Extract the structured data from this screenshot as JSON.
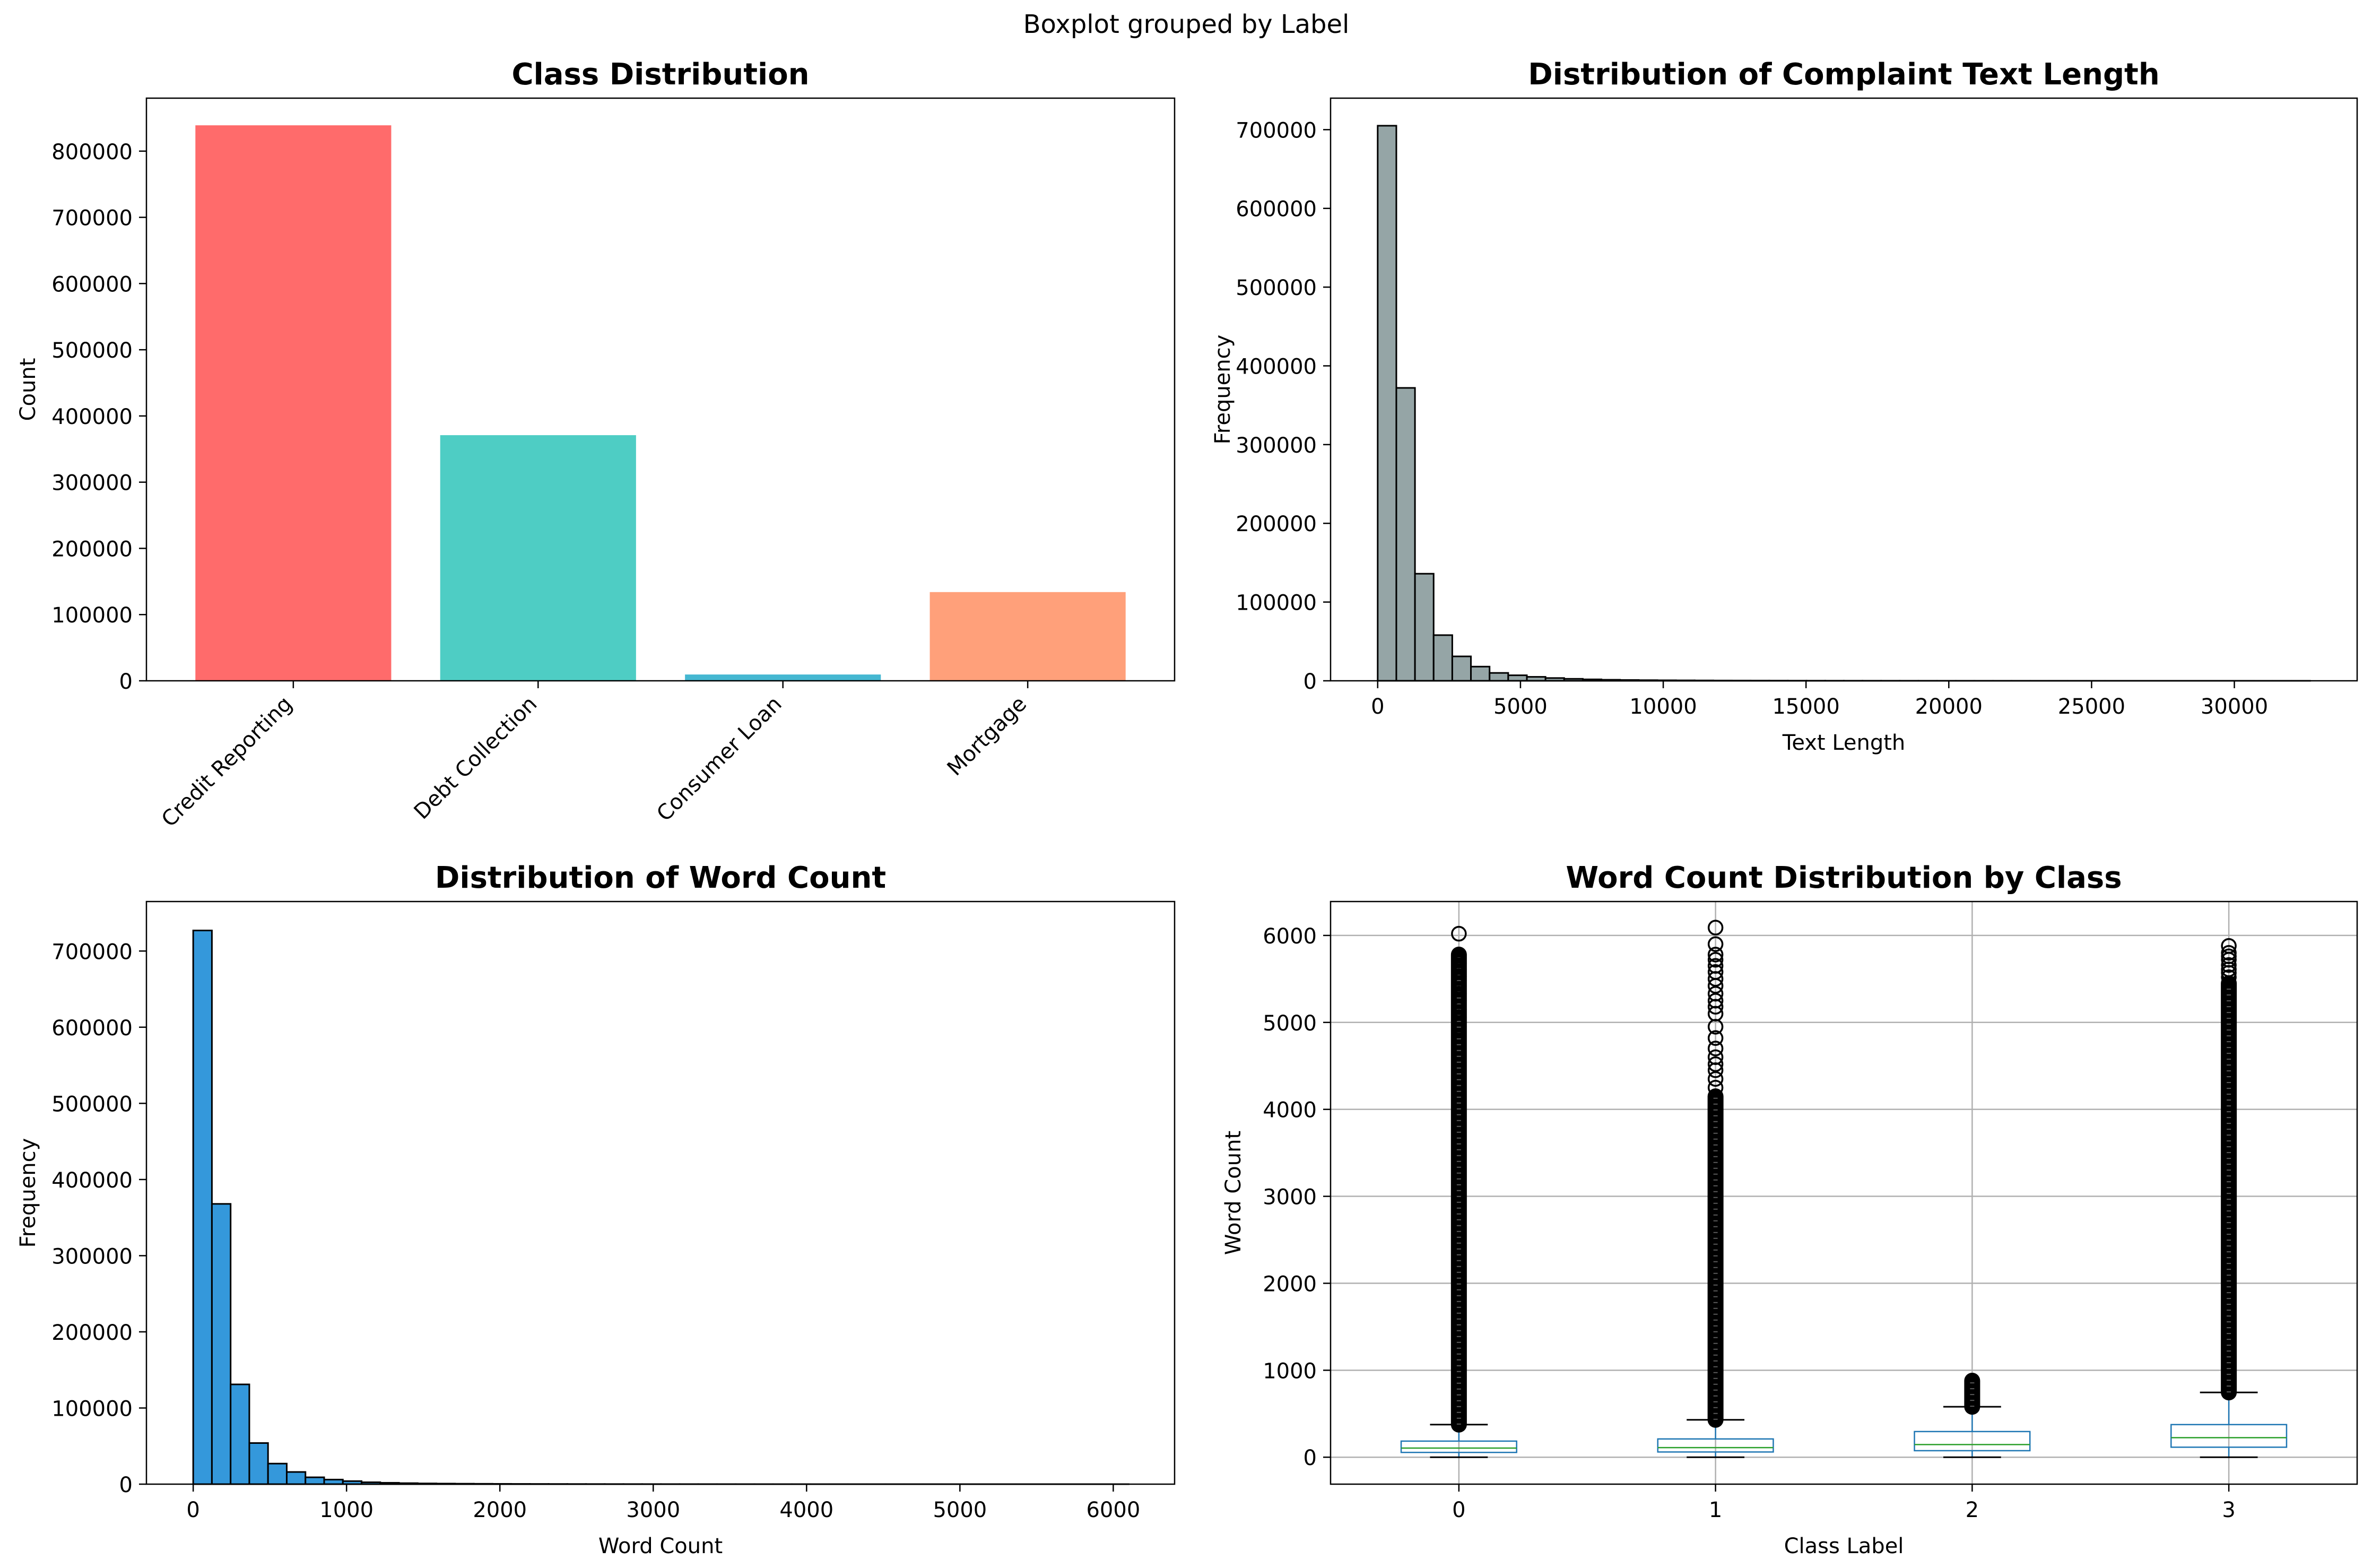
{
  "figure": {
    "suptitle": "Boxplot grouped by Label"
  },
  "chart_data": [
    {
      "type": "bar",
      "title": "Class Distribution",
      "xlabel": "",
      "ylabel": "Count",
      "categories": [
        "Credit Reporting",
        "Debt Collection",
        "Consumer Loan",
        "Mortgage"
      ],
      "values": [
        839000,
        371000,
        9500,
        134000
      ],
      "colors": [
        "#FF6B6B",
        "#4ECDC4",
        "#45B7D1",
        "#FFA07A"
      ],
      "ylim": [
        0,
        880000
      ],
      "yticks": [
        0,
        100000,
        200000,
        300000,
        400000,
        500000,
        600000,
        700000,
        800000
      ],
      "grid": false
    },
    {
      "type": "bar",
      "subtype": "histogram",
      "title": "Distribution of Complaint Text Length",
      "xlabel": "Text Length",
      "ylabel": "Frequency",
      "color": "#95A5A6",
      "edgecolor": "#000000",
      "bin_start": 0,
      "bin_width": 653,
      "values": [
        705000,
        372000,
        136000,
        58000,
        31000,
        18000,
        10000,
        7000,
        5000,
        3500,
        2500,
        1800,
        1300,
        1000,
        800,
        650,
        550,
        450,
        350,
        300,
        250,
        200,
        150,
        120,
        100,
        80,
        70,
        60,
        50,
        40,
        35,
        30,
        25,
        20,
        18,
        15,
        12,
        10,
        8,
        6,
        5,
        4,
        3,
        3,
        2,
        2,
        2,
        1,
        1,
        1
      ],
      "xlim": [
        -1650,
        34300
      ],
      "ylim": [
        0,
        740000
      ],
      "xticks": [
        0,
        5000,
        10000,
        15000,
        20000,
        25000,
        30000
      ],
      "yticks": [
        0,
        100000,
        200000,
        300000,
        400000,
        500000,
        600000,
        700000
      ],
      "grid": false
    },
    {
      "type": "bar",
      "subtype": "histogram",
      "title": "Distribution of Word Count",
      "xlabel": "Word Count",
      "ylabel": "Frequency",
      "color": "#3498DB",
      "edgecolor": "#000000",
      "bin_start": 0,
      "bin_width": 122,
      "values": [
        727000,
        368000,
        131000,
        54000,
        27000,
        16000,
        9000,
        6000,
        4000,
        2500,
        1800,
        1300,
        950,
        750,
        600,
        480,
        380,
        300,
        250,
        200,
        160,
        130,
        100,
        85,
        70,
        60,
        50,
        40,
        35,
        30,
        25,
        20,
        18,
        15,
        12,
        10,
        9,
        8,
        7,
        6,
        5,
        4,
        3,
        3,
        2,
        2,
        1,
        1,
        1,
        1
      ],
      "xlim": [
        -305,
        6400
      ],
      "ylim": [
        0,
        765000
      ],
      "xticks": [
        0,
        1000,
        2000,
        3000,
        4000,
        5000,
        6000
      ],
      "yticks": [
        0,
        100000,
        200000,
        300000,
        400000,
        500000,
        600000,
        700000
      ],
      "grid": false
    },
    {
      "type": "boxplot",
      "title": "Word Count Distribution by Class",
      "xlabel": "Class Label",
      "ylabel": "Word Count",
      "categories": [
        "0",
        "1",
        "2",
        "3"
      ],
      "series": [
        {
          "label": "0",
          "whislo": 0,
          "q1": 55,
          "med": 105,
          "q3": 185,
          "whishi": 375,
          "flier_low": 375,
          "flier_high": 5780,
          "flier_max": 6020,
          "sparse": [
            4950,
            5060,
            5150,
            5250,
            5330,
            5420,
            5480,
            5530,
            5610,
            5680,
            5740,
            5780,
            6020
          ]
        },
        {
          "label": "1",
          "whislo": 0,
          "q1": 60,
          "med": 110,
          "q3": 210,
          "whishi": 430,
          "flier_low": 430,
          "flier_high": 4150,
          "flier_max": 6090,
          "sparse": [
            4250,
            4350,
            4450,
            4520,
            4600,
            4700,
            4820,
            4950,
            5100,
            5180,
            5250,
            5330,
            5420,
            5500,
            5580,
            5650,
            5720,
            5780,
            5900,
            6090
          ]
        },
        {
          "label": "2",
          "whislo": 0,
          "q1": 75,
          "med": 145,
          "q3": 295,
          "whishi": 580,
          "flier_low": 580,
          "flier_high": 880,
          "flier_max": 880,
          "sparse": []
        },
        {
          "label": "3",
          "whislo": 0,
          "q1": 115,
          "med": 225,
          "q3": 375,
          "whishi": 745,
          "flier_low": 745,
          "flier_high": 5450,
          "flier_max": 5880,
          "sparse": [
            5520,
            5570,
            5610,
            5660,
            5720,
            5760,
            5800,
            5880
          ]
        }
      ],
      "box_color": "#1F77B4",
      "median_color": "#2CA02C",
      "ylim": [
        -310,
        6390
      ],
      "yticks": [
        0,
        1000,
        2000,
        3000,
        4000,
        5000,
        6000
      ],
      "grid": true
    }
  ]
}
